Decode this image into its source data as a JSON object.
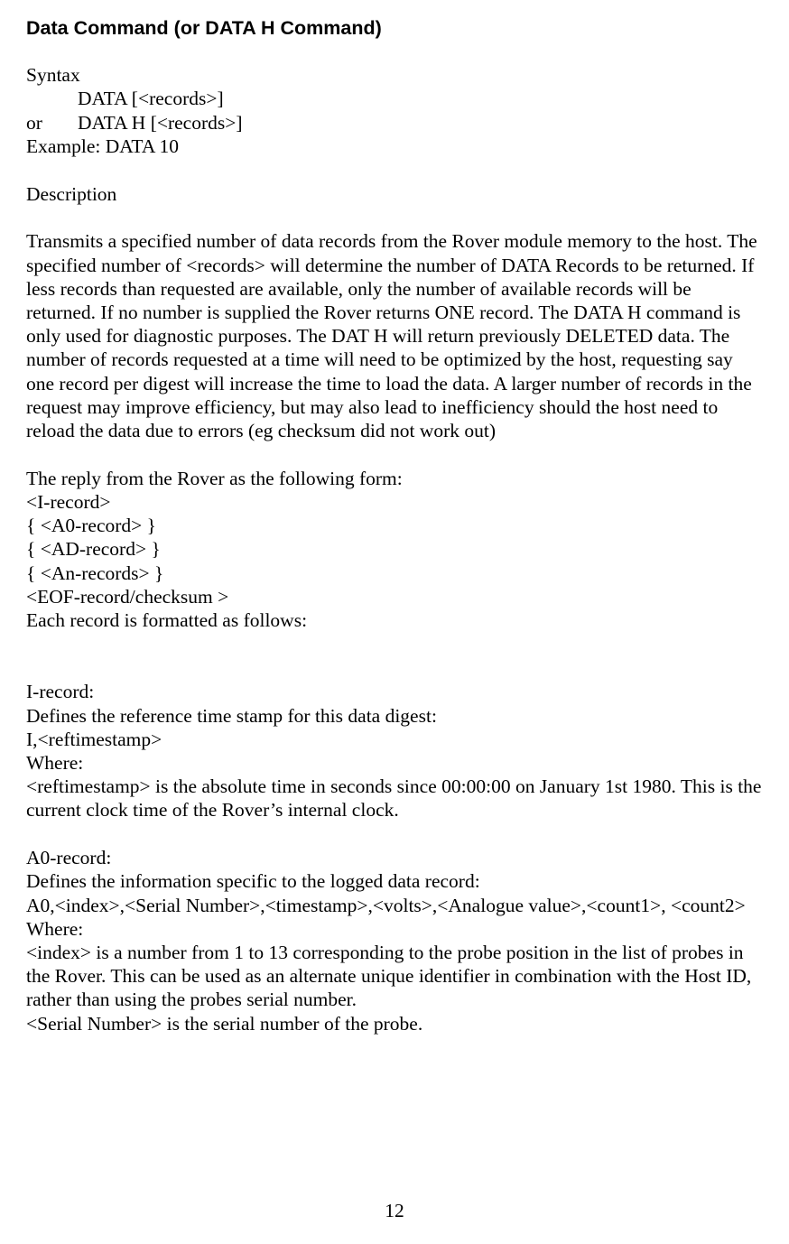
{
  "heading": "Data Command (or DATA H Command)",
  "syntax": {
    "label": "Syntax",
    "line1": "DATA [<records>]",
    "or": "or",
    "line2": "DATA H [<records>]",
    "example": "Example: DATA 10"
  },
  "descLabel": "Description",
  "descPara": "Transmits a specified number of data records from the Rover module memory to the host. The specified number of <records> will determine the number of DATA Records to be returned. If less records than requested are available, only the number of available records will be returned. If no number is supplied the Rover returns ONE record. The DATA H command is only used for diagnostic purposes. The DAT H will return previously DELETED data. The number of records requested at a time will need to be optimized by the host, requesting say one record per digest will increase the time to load the data. A larger number of records in the request may improve efficiency, but may also lead to inefficiency should the host need to reload the data due to errors (eg checksum did not work out)",
  "reply": {
    "intro": "The reply from the Rover as the following form:",
    "l1": "<I-record>",
    "l2": "{ <A0-record> }",
    "l3": "{ <AD-record> }",
    "l4": "{ <An-records> }",
    "l5": "<EOF-record/checksum >",
    "outro": "Each record is formatted as follows:"
  },
  "iRecord": {
    "title": "I-record:",
    "l1": "Defines the reference time stamp for this data digest:",
    "l2": "I,<reftimestamp>",
    "l3": "Where:",
    "l4": "<reftimestamp> is the absolute time in seconds since 00:00:00 on January 1st 1980. This is the current clock time of the Rover’s internal clock."
  },
  "a0Record": {
    "title": "A0-record:",
    "l1": "Defines the information specific to the logged data record:",
    "l2": "A0,<index>,<Serial Number>,<timestamp>,<volts>,<Analogue value>,<count1>, <count2>",
    "l3": "Where:",
    "l4": "<index> is a number from 1 to 13 corresponding to the probe position in the list of probes in the Rover. This can be used as an alternate unique identifier in combination with the Host ID, rather than using the probes serial number.",
    "l5": "<Serial Number> is the serial number of the probe."
  },
  "pageNumber": "12"
}
